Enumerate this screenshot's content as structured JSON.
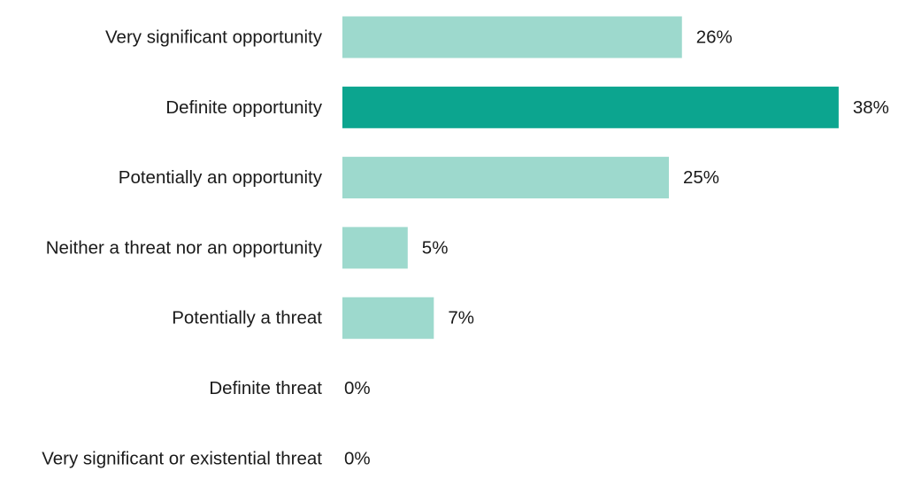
{
  "chart_data": {
    "type": "bar",
    "orientation": "horizontal",
    "categories": [
      "Very significant opportunity",
      "Definite opportunity",
      "Potentially an opportunity",
      "Neither a threat nor an opportunity",
      "Potentially a threat",
      "Definite threat",
      "Very significant or existential threat"
    ],
    "values": [
      26,
      38,
      25,
      5,
      7,
      0,
      0
    ],
    "value_labels": [
      "26%",
      "38%",
      "25%",
      "5%",
      "7%",
      "0%",
      "0%"
    ],
    "xlim": [
      0,
      38
    ],
    "grid": false,
    "legend": "none",
    "highlight_index": 1,
    "colors": {
      "bar": "#9dd9cd",
      "highlight": "#0ca58f",
      "text": "#1a1a1a"
    }
  }
}
